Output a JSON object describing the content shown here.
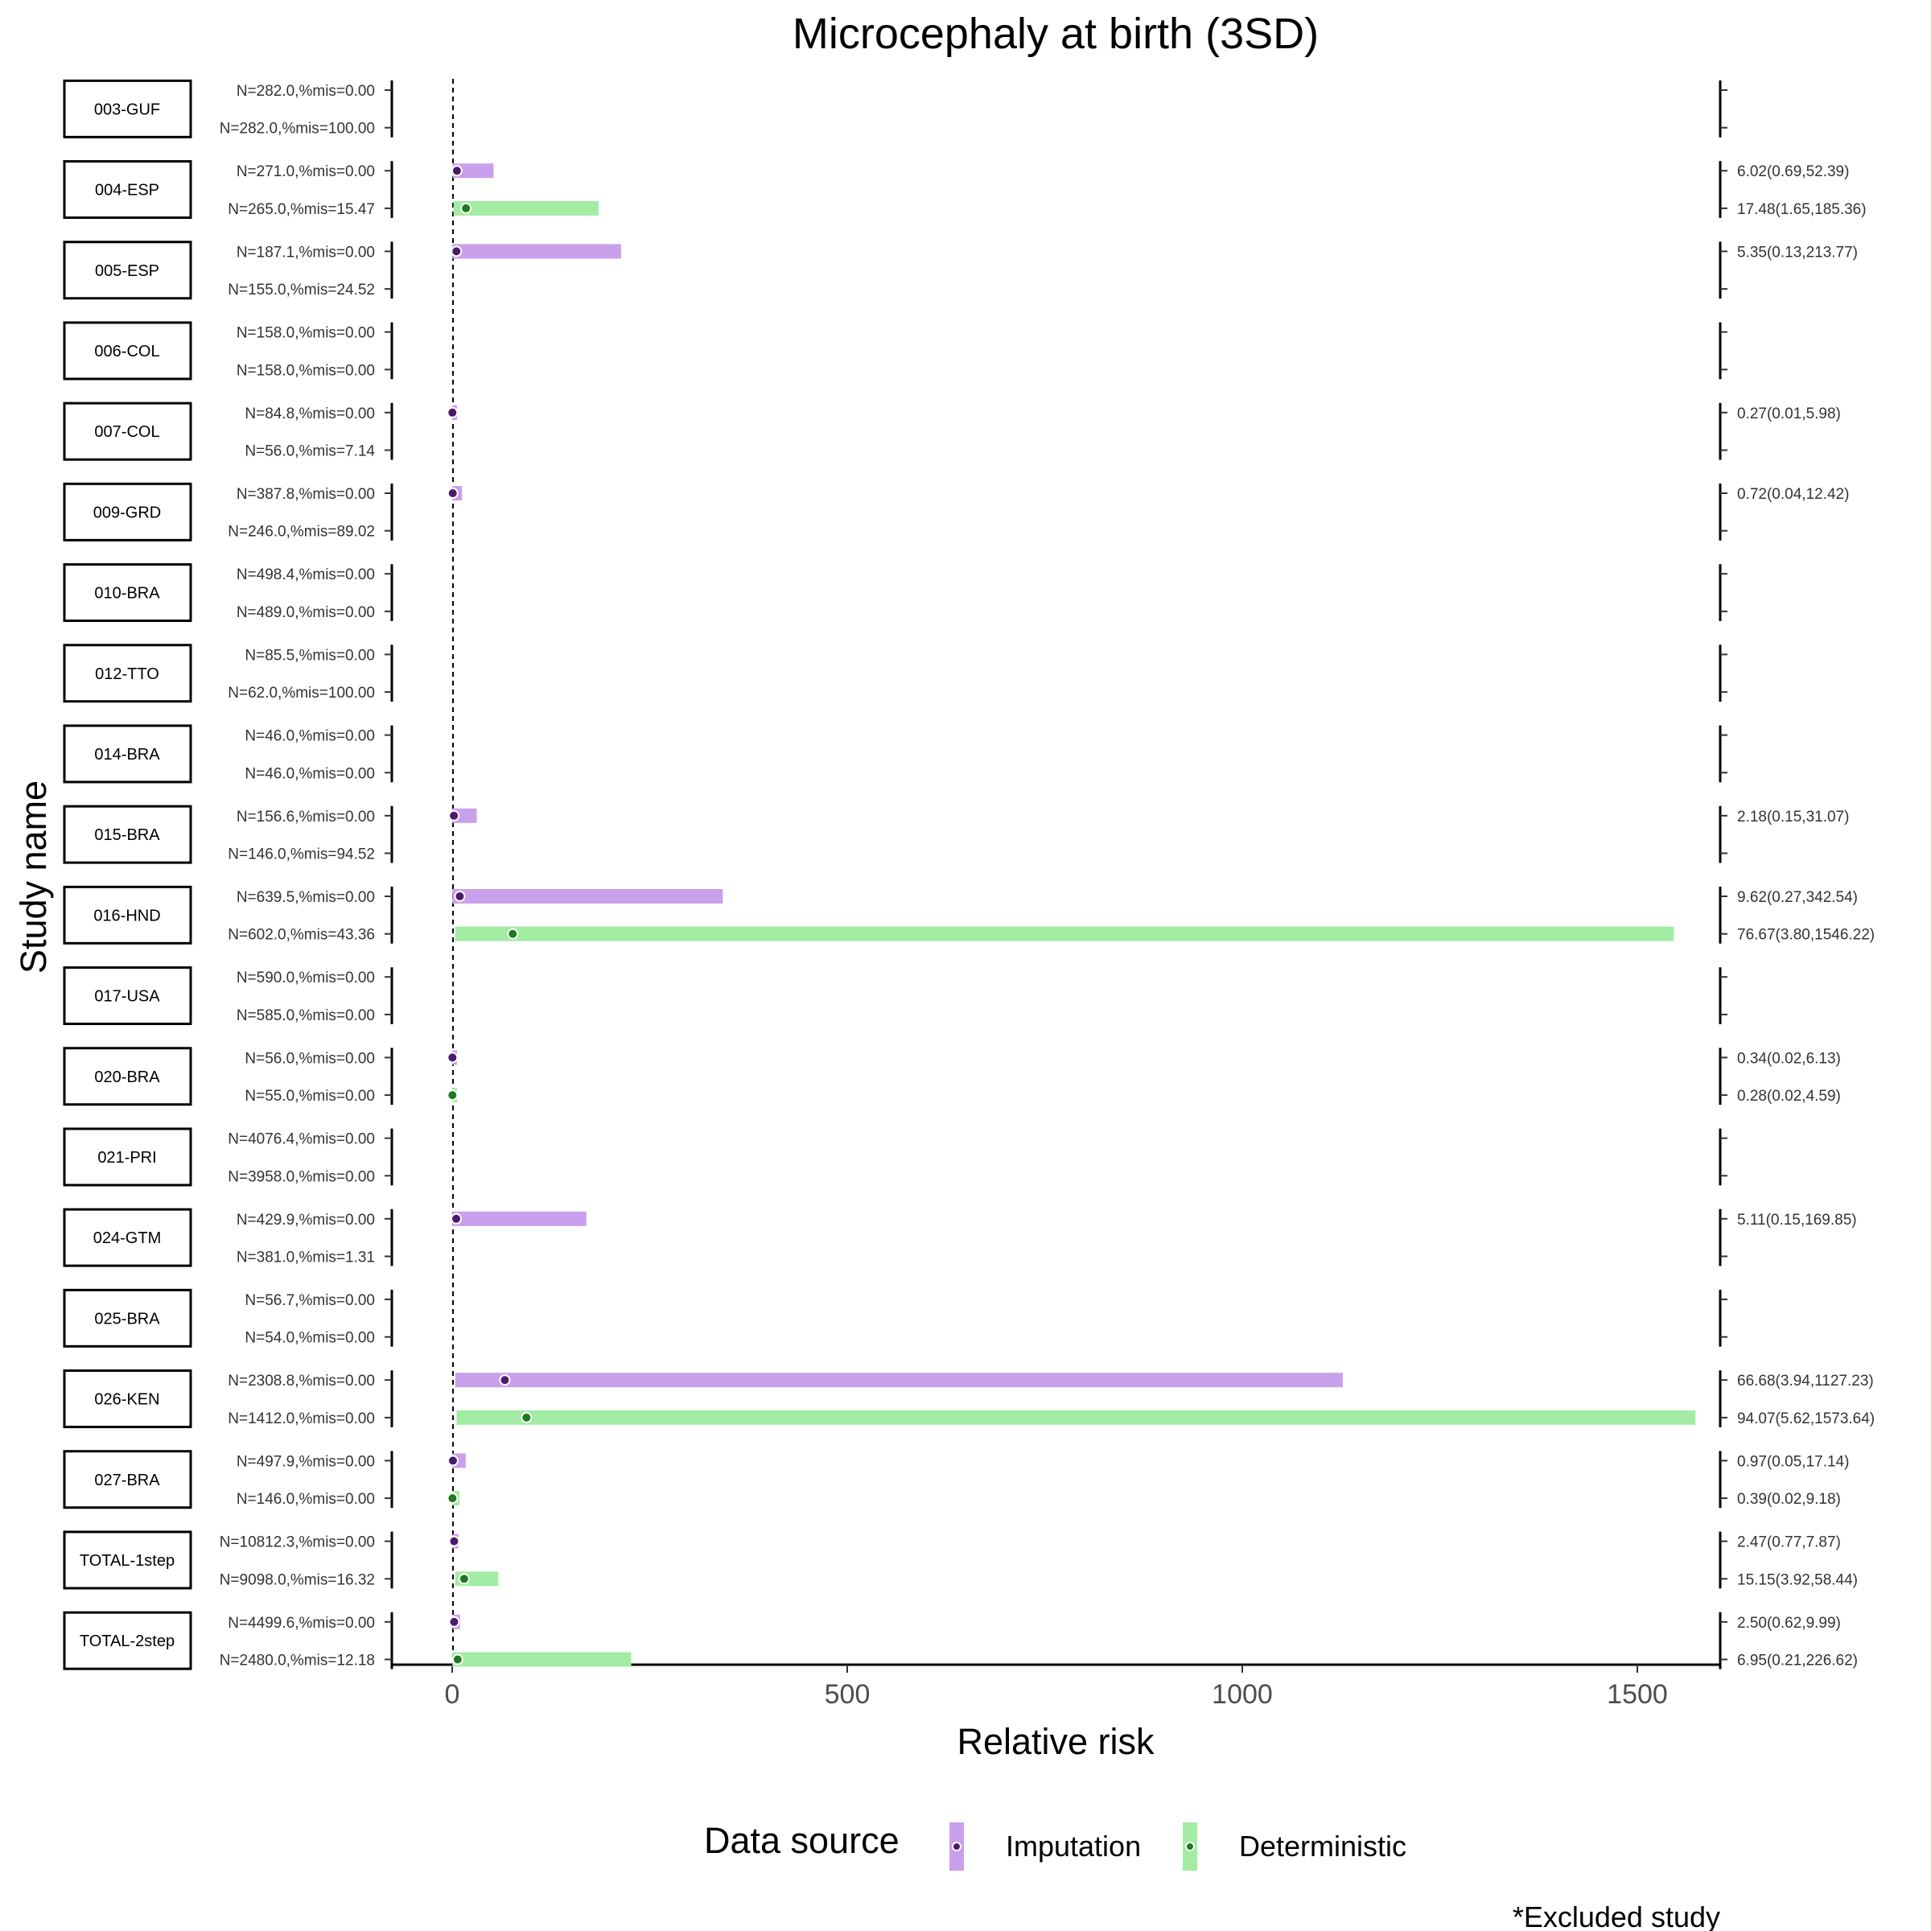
{
  "chart_data": {
    "type": "forest",
    "title": "Microcephaly at birth (3SD)",
    "xlabel": "Relative risk",
    "ylabel": "Study name",
    "xlim": [
      -80,
      1650
    ],
    "xticks": [
      0,
      500,
      1000,
      1500
    ],
    "xtick_labels": [
      "0",
      "500",
      "1000",
      "1500"
    ],
    "reference_line": 1,
    "legend": {
      "title": "Data source",
      "entries": [
        {
          "name": "Imputation",
          "color": "#c9a0ec",
          "dot": "#4b1a6b"
        },
        {
          "name": "Deterministic",
          "color": "#a3eca3",
          "dot": "#1e7a1e"
        }
      ],
      "position": "bottom"
    },
    "footnote": "*Excluded study",
    "studies": [
      {
        "name": "003-GUF",
        "rows": [
          {
            "label": "N=282.0,%mis=0.00",
            "source": "Imputation",
            "est": null,
            "low": null,
            "high": null,
            "text": ""
          },
          {
            "label": "N=282.0,%mis=100.00",
            "source": "Deterministic",
            "est": null,
            "low": null,
            "high": null,
            "text": ""
          }
        ]
      },
      {
        "name": "004-ESP",
        "rows": [
          {
            "label": "N=271.0,%mis=0.00",
            "source": "Imputation",
            "est": 6.02,
            "low": 0.69,
            "high": 52.39,
            "text": "6.02(0.69,52.39)"
          },
          {
            "label": "N=265.0,%mis=15.47",
            "source": "Deterministic",
            "est": 17.48,
            "low": 1.65,
            "high": 185.36,
            "text": "17.48(1.65,185.36)"
          }
        ]
      },
      {
        "name": "005-ESP",
        "rows": [
          {
            "label": "N=187.1,%mis=0.00",
            "source": "Imputation",
            "est": 5.35,
            "low": 0.13,
            "high": 213.77,
            "text": "5.35(0.13,213.77)"
          },
          {
            "label": "N=155.0,%mis=24.52",
            "source": "Deterministic",
            "est": null,
            "low": null,
            "high": null,
            "text": ""
          }
        ]
      },
      {
        "name": "006-COL",
        "rows": [
          {
            "label": "N=158.0,%mis=0.00",
            "source": "Imputation",
            "est": null,
            "low": null,
            "high": null,
            "text": ""
          },
          {
            "label": "N=158.0,%mis=0.00",
            "source": "Deterministic",
            "est": null,
            "low": null,
            "high": null,
            "text": ""
          }
        ]
      },
      {
        "name": "007-COL",
        "rows": [
          {
            "label": "N=84.8,%mis=0.00",
            "source": "Imputation",
            "est": 0.27,
            "low": 0.01,
            "high": 5.98,
            "text": "0.27(0.01,5.98)"
          },
          {
            "label": "N=56.0,%mis=7.14",
            "source": "Deterministic",
            "est": null,
            "low": null,
            "high": null,
            "text": ""
          }
        ]
      },
      {
        "name": "009-GRD",
        "rows": [
          {
            "label": "N=387.8,%mis=0.00",
            "source": "Imputation",
            "est": 0.72,
            "low": 0.04,
            "high": 12.42,
            "text": "0.72(0.04,12.42)"
          },
          {
            "label": "N=246.0,%mis=89.02",
            "source": "Deterministic",
            "est": null,
            "low": null,
            "high": null,
            "text": ""
          }
        ]
      },
      {
        "name": "010-BRA",
        "rows": [
          {
            "label": "N=498.4,%mis=0.00",
            "source": "Imputation",
            "est": null,
            "low": null,
            "high": null,
            "text": ""
          },
          {
            "label": "N=489.0,%mis=0.00",
            "source": "Deterministic",
            "est": null,
            "low": null,
            "high": null,
            "text": ""
          }
        ]
      },
      {
        "name": "012-TTO",
        "rows": [
          {
            "label": "N=85.5,%mis=0.00",
            "source": "Imputation",
            "est": null,
            "low": null,
            "high": null,
            "text": ""
          },
          {
            "label": "N=62.0,%mis=100.00",
            "source": "Deterministic",
            "est": null,
            "low": null,
            "high": null,
            "text": ""
          }
        ]
      },
      {
        "name": "014-BRA",
        "rows": [
          {
            "label": "N=46.0,%mis=0.00",
            "source": "Imputation",
            "est": null,
            "low": null,
            "high": null,
            "text": ""
          },
          {
            "label": "N=46.0,%mis=0.00",
            "source": "Deterministic",
            "est": null,
            "low": null,
            "high": null,
            "text": ""
          }
        ]
      },
      {
        "name": "015-BRA",
        "rows": [
          {
            "label": "N=156.6,%mis=0.00",
            "source": "Imputation",
            "est": 2.18,
            "low": 0.15,
            "high": 31.07,
            "text": "2.18(0.15,31.07)"
          },
          {
            "label": "N=146.0,%mis=94.52",
            "source": "Deterministic",
            "est": null,
            "low": null,
            "high": null,
            "text": ""
          }
        ]
      },
      {
        "name": "016-HND",
        "rows": [
          {
            "label": "N=639.5,%mis=0.00",
            "source": "Imputation",
            "est": 9.62,
            "low": 0.27,
            "high": 342.54,
            "text": "9.62(0.27,342.54)"
          },
          {
            "label": "N=602.0,%mis=43.36",
            "source": "Deterministic",
            "est": 76.67,
            "low": 3.8,
            "high": 1546.22,
            "text": "76.67(3.80,1546.22)"
          }
        ]
      },
      {
        "name": "017-USA",
        "rows": [
          {
            "label": "N=590.0,%mis=0.00",
            "source": "Imputation",
            "est": null,
            "low": null,
            "high": null,
            "text": ""
          },
          {
            "label": "N=585.0,%mis=0.00",
            "source": "Deterministic",
            "est": null,
            "low": null,
            "high": null,
            "text": ""
          }
        ]
      },
      {
        "name": "020-BRA",
        "rows": [
          {
            "label": "N=56.0,%mis=0.00",
            "source": "Imputation",
            "est": 0.34,
            "low": 0.02,
            "high": 6.13,
            "text": "0.34(0.02,6.13)"
          },
          {
            "label": "N=55.0,%mis=0.00",
            "source": "Deterministic",
            "est": 0.28,
            "low": 0.02,
            "high": 4.59,
            "text": "0.28(0.02,4.59)"
          }
        ]
      },
      {
        "name": "021-PRI",
        "rows": [
          {
            "label": "N=4076.4,%mis=0.00",
            "source": "Imputation",
            "est": null,
            "low": null,
            "high": null,
            "text": ""
          },
          {
            "label": "N=3958.0,%mis=0.00",
            "source": "Deterministic",
            "est": null,
            "low": null,
            "high": null,
            "text": ""
          }
        ]
      },
      {
        "name": "024-GTM",
        "rows": [
          {
            "label": "N=429.9,%mis=0.00",
            "source": "Imputation",
            "est": 5.11,
            "low": 0.15,
            "high": 169.85,
            "text": "5.11(0.15,169.85)"
          },
          {
            "label": "N=381.0,%mis=1.31",
            "source": "Deterministic",
            "est": null,
            "low": null,
            "high": null,
            "text": ""
          }
        ]
      },
      {
        "name": "025-BRA",
        "rows": [
          {
            "label": "N=56.7,%mis=0.00",
            "source": "Imputation",
            "est": null,
            "low": null,
            "high": null,
            "text": ""
          },
          {
            "label": "N=54.0,%mis=0.00",
            "source": "Deterministic",
            "est": null,
            "low": null,
            "high": null,
            "text": ""
          }
        ]
      },
      {
        "name": "026-KEN",
        "rows": [
          {
            "label": "N=2308.8,%mis=0.00",
            "source": "Imputation",
            "est": 66.68,
            "low": 3.94,
            "high": 1127.23,
            "text": "66.68(3.94,1127.23)"
          },
          {
            "label": "N=1412.0,%mis=0.00",
            "source": "Deterministic",
            "est": 94.07,
            "low": 5.62,
            "high": 1573.64,
            "text": "94.07(5.62,1573.64)"
          }
        ]
      },
      {
        "name": "027-BRA",
        "rows": [
          {
            "label": "N=497.9,%mis=0.00",
            "source": "Imputation",
            "est": 0.97,
            "low": 0.05,
            "high": 17.14,
            "text": "0.97(0.05,17.14)"
          },
          {
            "label": "N=146.0,%mis=0.00",
            "source": "Deterministic",
            "est": 0.39,
            "low": 0.02,
            "high": 9.18,
            "text": "0.39(0.02,9.18)"
          }
        ]
      },
      {
        "name": "TOTAL-1step",
        "rows": [
          {
            "label": "N=10812.3,%mis=0.00",
            "source": "Imputation",
            "est": 2.47,
            "low": 0.77,
            "high": 7.87,
            "text": "2.47(0.77,7.87)"
          },
          {
            "label": "N=9098.0,%mis=16.32",
            "source": "Deterministic",
            "est": 15.15,
            "low": 3.92,
            "high": 58.44,
            "text": "15.15(3.92,58.44)"
          }
        ]
      },
      {
        "name": "TOTAL-2step",
        "rows": [
          {
            "label": "N=4499.6,%mis=0.00",
            "source": "Imputation",
            "est": 2.5,
            "low": 0.62,
            "high": 9.99,
            "text": "2.50(0.62,9.99)"
          },
          {
            "label": "N=2480.0,%mis=12.18",
            "source": "Deterministic",
            "est": 6.95,
            "low": 0.21,
            "high": 226.62,
            "text": "6.95(0.21,226.62)"
          }
        ]
      }
    ]
  }
}
